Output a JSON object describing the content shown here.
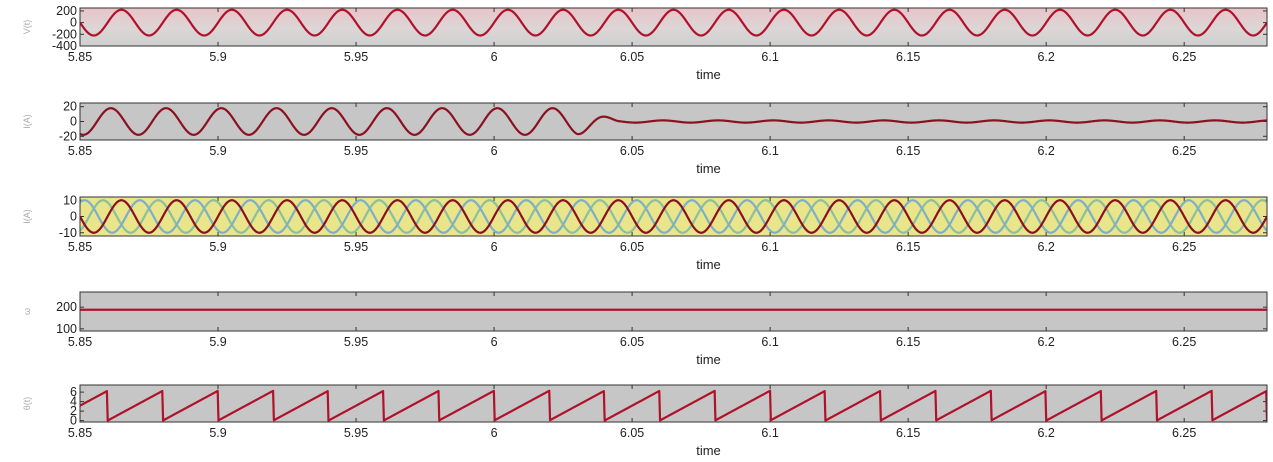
{
  "chart_data": [
    {
      "type": "line",
      "ylabel": "V(t)",
      "xlabel": "time",
      "xlim": [
        5.85,
        6.28
      ],
      "ylim": [
        -400,
        250
      ],
      "x_ticks": [
        "5.85",
        "5.9",
        "5.95",
        "6",
        "6.05",
        "6.1",
        "6.15",
        "6.2",
        "6.25"
      ],
      "y_ticks": [
        "200",
        "0",
        "-200",
        "-400"
      ],
      "background": "gradient-red-gray",
      "series": [
        {
          "waveform": "sine",
          "frequency_hz": 50,
          "amplitude": 220,
          "offset": 0,
          "color": "#b0112b"
        }
      ]
    },
    {
      "type": "line",
      "ylabel": "I(A)",
      "xlabel": "time",
      "xlim": [
        5.85,
        6.28
      ],
      "ylim": [
        -25,
        25
      ],
      "x_ticks": [
        "5.85",
        "5.9",
        "5.95",
        "6",
        "6.05",
        "6.1",
        "6.15",
        "6.2",
        "6.25"
      ],
      "y_ticks": [
        "20",
        "0",
        "-20"
      ],
      "background": "#c6c6c6",
      "series": [
        {
          "waveform": "sine_decaying",
          "frequency_hz": 50,
          "amplitude": 18,
          "amplitude_after": 1.5,
          "change_at": 6.03,
          "color": "#8b1020"
        }
      ]
    },
    {
      "type": "line",
      "ylabel": "I(A)",
      "xlabel": "time",
      "xlim": [
        5.85,
        6.28
      ],
      "ylim": [
        -12,
        12
      ],
      "x_ticks": [
        "5.85",
        "5.9",
        "5.95",
        "6",
        "6.05",
        "6.1",
        "6.15",
        "6.2",
        "6.25"
      ],
      "y_ticks": [
        "10",
        "0",
        "-10"
      ],
      "background": "#e8e58a",
      "series": [
        {
          "waveform": "sine",
          "frequency_hz": 50,
          "amplitude": 10,
          "phase_deg": 120,
          "color": "#8bbfa0"
        },
        {
          "waveform": "sine",
          "frequency_hz": 50,
          "amplitude": 10,
          "phase_deg": -120,
          "color": "#7db0c8"
        },
        {
          "waveform": "sine",
          "frequency_hz": 50,
          "amplitude": 10,
          "phase_deg": 0,
          "color": "#8b1020"
        }
      ]
    },
    {
      "type": "line",
      "ylabel": "ω",
      "xlabel": "time",
      "xlim": [
        5.85,
        6.28
      ],
      "ylim": [
        90,
        270
      ],
      "x_ticks": [
        "5.85",
        "5.9",
        "5.95",
        "6",
        "6.05",
        "6.1",
        "6.15",
        "6.2",
        "6.25"
      ],
      "y_ticks": [
        "200",
        "100"
      ],
      "background": "#c6c6c6",
      "series": [
        {
          "waveform": "constant",
          "value": 188,
          "color": "#b0112b"
        }
      ]
    },
    {
      "type": "line",
      "ylabel": "θ(t)",
      "xlabel": "time",
      "xlim": [
        5.85,
        6.28
      ],
      "ylim": [
        -0.3,
        7.5
      ],
      "x_ticks": [
        "5.85",
        "5.9",
        "5.95",
        "6",
        "6.05",
        "6.1",
        "6.15",
        "6.2",
        "6.25"
      ],
      "y_ticks": [
        "6",
        "4",
        "2",
        "0"
      ],
      "background": "#c6c6c6",
      "series": [
        {
          "waveform": "sawtooth",
          "frequency_hz": 50,
          "min": 0,
          "max": 6.283,
          "color": "#b0112b"
        }
      ]
    }
  ]
}
